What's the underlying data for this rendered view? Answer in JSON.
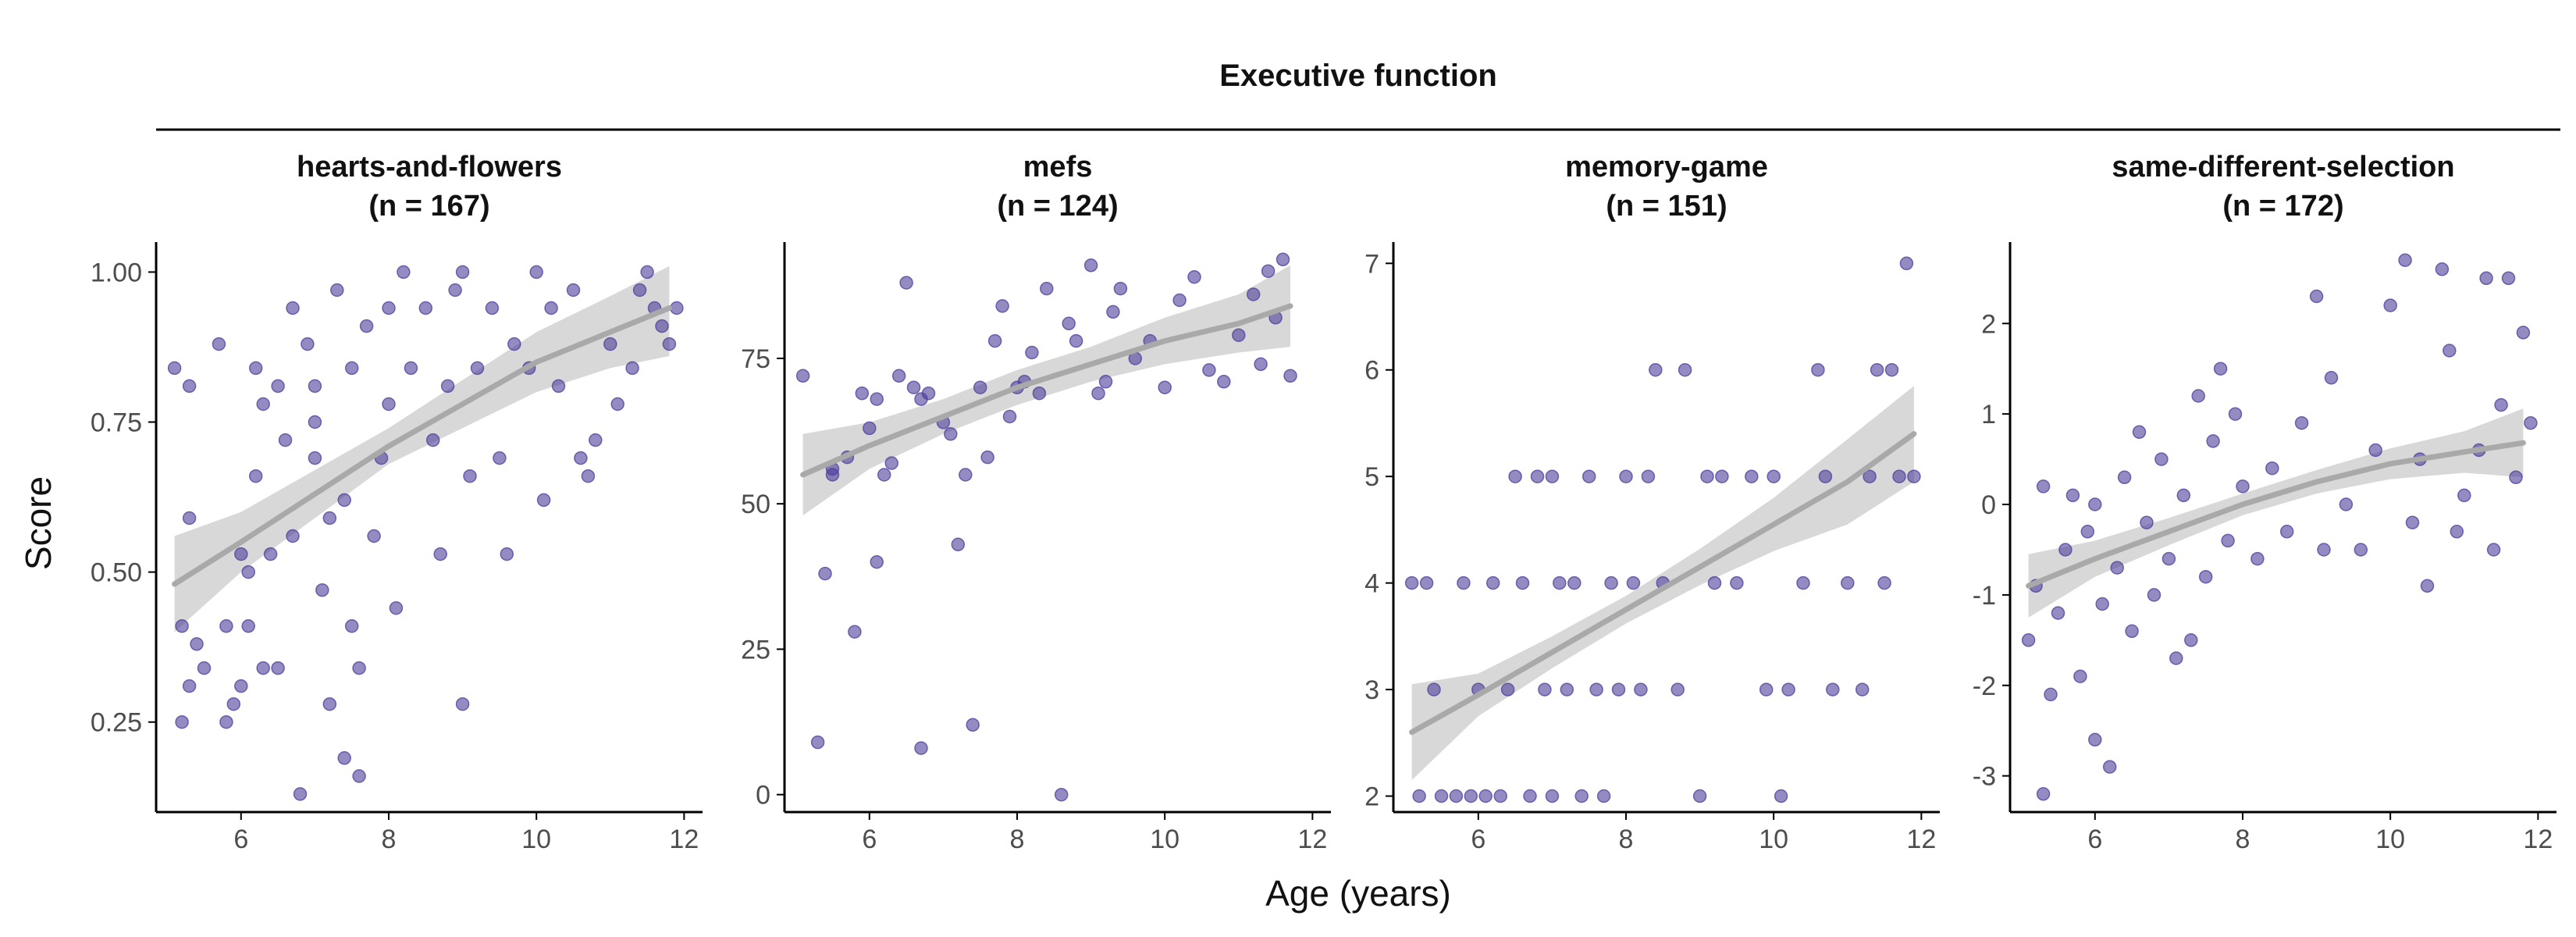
{
  "title": "Executive function",
  "xlabel": "Age (years)",
  "ylabel": "Score",
  "colors": {
    "point": "#4b3d9a",
    "smooth_line": "#a9a9a9",
    "ribbon": "#d4d4d4",
    "axis": "#000000",
    "text": "#4d4d4d"
  },
  "chart_data": [
    {
      "type": "scatter",
      "name": "hearts-and-flowers",
      "subtitle": "(n = 167)",
      "xlim": [
        4.85,
        12.25
      ],
      "ylim": [
        0.1,
        1.05
      ],
      "xticks": [
        6,
        8,
        10,
        12
      ],
      "yticks": [
        0.25,
        0.5,
        0.75,
        1.0
      ],
      "ytick_labels": [
        "0.25",
        "0.50",
        "0.75",
        "1.00"
      ],
      "smooth": {
        "x": [
          5.1,
          6.0,
          7.0,
          8.0,
          9.0,
          10.0,
          11.0,
          11.8
        ],
        "y": [
          0.48,
          0.55,
          0.63,
          0.71,
          0.78,
          0.85,
          0.9,
          0.94
        ],
        "lower": [
          0.4,
          0.5,
          0.59,
          0.68,
          0.74,
          0.8,
          0.84,
          0.86
        ],
        "upper": [
          0.56,
          0.6,
          0.67,
          0.74,
          0.82,
          0.9,
          0.96,
          1.01
        ]
      },
      "points": [
        [
          5.1,
          0.84
        ],
        [
          5.2,
          0.25
        ],
        [
          5.2,
          0.41
        ],
        [
          5.3,
          0.81
        ],
        [
          5.3,
          0.31
        ],
        [
          5.3,
          0.59
        ],
        [
          5.4,
          0.38
        ],
        [
          5.5,
          0.34
        ],
        [
          5.7,
          0.88
        ],
        [
          5.8,
          0.41
        ],
        [
          5.8,
          0.25
        ],
        [
          5.9,
          0.28
        ],
        [
          6.0,
          0.53
        ],
        [
          6.0,
          0.31
        ],
        [
          6.1,
          0.41
        ],
        [
          6.1,
          0.5
        ],
        [
          6.2,
          0.84
        ],
        [
          6.2,
          0.66
        ],
        [
          6.3,
          0.78
        ],
        [
          6.3,
          0.34
        ],
        [
          6.4,
          0.53
        ],
        [
          6.5,
          0.81
        ],
        [
          6.5,
          0.34
        ],
        [
          6.6,
          0.72
        ],
        [
          6.7,
          0.56
        ],
        [
          6.7,
          0.94
        ],
        [
          6.8,
          0.13
        ],
        [
          6.9,
          0.88
        ],
        [
          7.0,
          0.75
        ],
        [
          7.0,
          0.69
        ],
        [
          7.0,
          0.81
        ],
        [
          7.1,
          0.47
        ],
        [
          7.2,
          0.28
        ],
        [
          7.2,
          0.59
        ],
        [
          7.3,
          0.97
        ],
        [
          7.4,
          0.62
        ],
        [
          7.4,
          0.19
        ],
        [
          7.5,
          0.84
        ],
        [
          7.5,
          0.41
        ],
        [
          7.6,
          0.34
        ],
        [
          7.6,
          0.16
        ],
        [
          7.7,
          0.91
        ],
        [
          7.8,
          0.56
        ],
        [
          7.9,
          0.69
        ],
        [
          8.0,
          0.78
        ],
        [
          8.0,
          0.94
        ],
        [
          8.1,
          0.44
        ],
        [
          8.2,
          1.0
        ],
        [
          8.3,
          0.84
        ],
        [
          8.5,
          0.94
        ],
        [
          8.6,
          0.72
        ],
        [
          8.7,
          0.53
        ],
        [
          8.8,
          0.81
        ],
        [
          8.9,
          0.97
        ],
        [
          9.0,
          0.28
        ],
        [
          9.0,
          1.0
        ],
        [
          9.1,
          0.66
        ],
        [
          9.2,
          0.84
        ],
        [
          9.4,
          0.94
        ],
        [
          9.5,
          0.69
        ],
        [
          9.6,
          0.53
        ],
        [
          9.7,
          0.88
        ],
        [
          9.9,
          0.84
        ],
        [
          10.0,
          1.0
        ],
        [
          10.1,
          0.62
        ],
        [
          10.2,
          0.94
        ],
        [
          10.3,
          0.81
        ],
        [
          10.5,
          0.97
        ],
        [
          10.6,
          0.69
        ],
        [
          10.7,
          0.66
        ],
        [
          10.8,
          0.72
        ],
        [
          11.0,
          0.88
        ],
        [
          11.1,
          0.78
        ],
        [
          11.3,
          0.84
        ],
        [
          11.4,
          0.97
        ],
        [
          11.5,
          1.0
        ],
        [
          11.6,
          0.94
        ],
        [
          11.7,
          0.91
        ],
        [
          11.8,
          0.88
        ],
        [
          11.9,
          0.94
        ]
      ]
    },
    {
      "type": "scatter",
      "name": "mefs",
      "subtitle": "(n = 124)",
      "xlim": [
        4.85,
        12.25
      ],
      "ylim": [
        -3,
        95
      ],
      "xticks": [
        6,
        8,
        10,
        12
      ],
      "yticks": [
        0,
        25,
        50,
        75
      ],
      "ytick_labels": [
        "0",
        "25",
        "50",
        "75"
      ],
      "smooth": {
        "x": [
          5.1,
          6.0,
          7.0,
          8.0,
          9.0,
          10.0,
          11.0,
          11.7
        ],
        "y": [
          55,
          60,
          65,
          70,
          74,
          78,
          81,
          84
        ],
        "lower": [
          48,
          56,
          62,
          67,
          71,
          74,
          76,
          77
        ],
        "upper": [
          62,
          64,
          68,
          73,
          77,
          82,
          86,
          91
        ]
      },
      "points": [
        [
          5.1,
          72
        ],
        [
          5.3,
          9
        ],
        [
          5.4,
          38
        ],
        [
          5.5,
          56
        ],
        [
          5.5,
          55
        ],
        [
          5.7,
          58
        ],
        [
          5.8,
          28
        ],
        [
          5.9,
          69
        ],
        [
          6.0,
          63
        ],
        [
          6.1,
          40
        ],
        [
          6.1,
          68
        ],
        [
          6.2,
          55
        ],
        [
          6.3,
          57
        ],
        [
          6.4,
          72
        ],
        [
          6.5,
          88
        ],
        [
          6.6,
          70
        ],
        [
          6.7,
          68
        ],
        [
          6.7,
          8
        ],
        [
          6.8,
          69
        ],
        [
          7.0,
          64
        ],
        [
          7.1,
          62
        ],
        [
          7.2,
          43
        ],
        [
          7.3,
          55
        ],
        [
          7.4,
          12
        ],
        [
          7.5,
          70
        ],
        [
          7.6,
          58
        ],
        [
          7.7,
          78
        ],
        [
          7.8,
          84
        ],
        [
          7.9,
          65
        ],
        [
          8.0,
          70
        ],
        [
          8.1,
          71
        ],
        [
          8.2,
          76
        ],
        [
          8.3,
          69
        ],
        [
          8.4,
          87
        ],
        [
          8.6,
          0
        ],
        [
          8.7,
          81
        ],
        [
          8.8,
          78
        ],
        [
          9.0,
          91
        ],
        [
          9.1,
          69
        ],
        [
          9.2,
          71
        ],
        [
          9.3,
          83
        ],
        [
          9.4,
          87
        ],
        [
          9.6,
          75
        ],
        [
          9.8,
          78
        ],
        [
          10.0,
          70
        ],
        [
          10.2,
          85
        ],
        [
          10.4,
          89
        ],
        [
          10.6,
          73
        ],
        [
          10.8,
          71
        ],
        [
          11.0,
          79
        ],
        [
          11.2,
          86
        ],
        [
          11.3,
          74
        ],
        [
          11.4,
          90
        ],
        [
          11.5,
          82
        ],
        [
          11.6,
          92
        ],
        [
          11.7,
          72
        ]
      ]
    },
    {
      "type": "scatter",
      "name": "memory-game",
      "subtitle": "(n = 151)",
      "xlim": [
        4.85,
        12.25
      ],
      "ylim": [
        1.85,
        7.2
      ],
      "xticks": [
        6,
        8,
        10,
        12
      ],
      "yticks": [
        2,
        3,
        4,
        5,
        6,
        7
      ],
      "ytick_labels": [
        "2",
        "3",
        "4",
        "5",
        "6",
        "7"
      ],
      "smooth": {
        "x": [
          5.1,
          6.0,
          7.0,
          8.0,
          9.0,
          10.0,
          11.0,
          11.9
        ],
        "y": [
          2.6,
          2.95,
          3.35,
          3.75,
          4.15,
          4.55,
          4.95,
          5.4
        ],
        "lower": [
          2.15,
          2.75,
          3.2,
          3.62,
          3.98,
          4.3,
          4.55,
          4.95
        ],
        "upper": [
          3.05,
          3.15,
          3.5,
          3.88,
          4.32,
          4.8,
          5.35,
          5.85
        ]
      },
      "points": [
        [
          5.1,
          4
        ],
        [
          5.3,
          4
        ],
        [
          5.2,
          2
        ],
        [
          5.4,
          3
        ],
        [
          5.5,
          2
        ],
        [
          5.7,
          2
        ],
        [
          5.8,
          4
        ],
        [
          5.9,
          2
        ],
        [
          6.0,
          3
        ],
        [
          6.1,
          2
        ],
        [
          6.2,
          4
        ],
        [
          6.3,
          2
        ],
        [
          6.4,
          3
        ],
        [
          6.5,
          5
        ],
        [
          6.6,
          4
        ],
        [
          6.7,
          2
        ],
        [
          6.8,
          5
        ],
        [
          6.9,
          3
        ],
        [
          7.0,
          5
        ],
        [
          7.0,
          2
        ],
        [
          7.1,
          4
        ],
        [
          7.2,
          3
        ],
        [
          7.3,
          4
        ],
        [
          7.4,
          2
        ],
        [
          7.5,
          5
        ],
        [
          7.6,
          3
        ],
        [
          7.7,
          2
        ],
        [
          7.8,
          4
        ],
        [
          7.9,
          3
        ],
        [
          8.0,
          5
        ],
        [
          8.1,
          4
        ],
        [
          8.2,
          3
        ],
        [
          8.3,
          5
        ],
        [
          8.4,
          6
        ],
        [
          8.5,
          4
        ],
        [
          8.7,
          3
        ],
        [
          8.8,
          6
        ],
        [
          9.0,
          2
        ],
        [
          9.1,
          5
        ],
        [
          9.2,
          4
        ],
        [
          9.3,
          5
        ],
        [
          9.5,
          4
        ],
        [
          9.7,
          5
        ],
        [
          9.9,
          3
        ],
        [
          10.0,
          5
        ],
        [
          10.1,
          2
        ],
        [
          10.2,
          3
        ],
        [
          10.4,
          4
        ],
        [
          10.6,
          6
        ],
        [
          10.7,
          5
        ],
        [
          10.8,
          3
        ],
        [
          11.0,
          4
        ],
        [
          11.2,
          3
        ],
        [
          11.3,
          5
        ],
        [
          11.4,
          6
        ],
        [
          11.5,
          4
        ],
        [
          11.6,
          6
        ],
        [
          11.7,
          5
        ],
        [
          11.8,
          7
        ],
        [
          11.9,
          5
        ]
      ]
    },
    {
      "type": "scatter",
      "name": "same-different-selection",
      "subtitle": "(n = 172)",
      "xlim": [
        4.85,
        12.25
      ],
      "ylim": [
        -3.4,
        2.9
      ],
      "xticks": [
        6,
        8,
        10,
        12
      ],
      "yticks": [
        -3,
        -2,
        -1,
        0,
        1,
        2
      ],
      "ytick_labels": [
        "-3",
        "-2",
        "-1",
        "0",
        "1",
        "2"
      ],
      "smooth": {
        "x": [
          5.1,
          6.0,
          7.0,
          8.0,
          9.0,
          10.0,
          11.0,
          11.8
        ],
        "y": [
          -0.9,
          -0.6,
          -0.3,
          0.0,
          0.25,
          0.45,
          0.58,
          0.68
        ],
        "lower": [
          -1.25,
          -0.8,
          -0.45,
          -0.12,
          0.12,
          0.28,
          0.35,
          0.3
        ],
        "upper": [
          -0.55,
          -0.4,
          -0.15,
          0.12,
          0.38,
          0.62,
          0.81,
          1.06
        ]
      },
      "points": [
        [
          5.1,
          -1.5
        ],
        [
          5.2,
          -0.9
        ],
        [
          5.3,
          0.2
        ],
        [
          5.3,
          -3.2
        ],
        [
          5.4,
          -2.1
        ],
        [
          5.5,
          -1.2
        ],
        [
          5.6,
          -0.5
        ],
        [
          5.7,
          0.1
        ],
        [
          5.8,
          -1.9
        ],
        [
          5.9,
          -0.3
        ],
        [
          6.0,
          -2.6
        ],
        [
          6.0,
          0.0
        ],
        [
          6.1,
          -1.1
        ],
        [
          6.2,
          -2.9
        ],
        [
          6.3,
          -0.7
        ],
        [
          6.4,
          0.3
        ],
        [
          6.5,
          -1.4
        ],
        [
          6.6,
          0.8
        ],
        [
          6.7,
          -0.2
        ],
        [
          6.8,
          -1.0
        ],
        [
          6.9,
          0.5
        ],
        [
          7.0,
          -0.6
        ],
        [
          7.1,
          -1.7
        ],
        [
          7.2,
          0.1
        ],
        [
          7.3,
          -1.5
        ],
        [
          7.4,
          1.2
        ],
        [
          7.5,
          -0.8
        ],
        [
          7.6,
          0.7
        ],
        [
          7.7,
          1.5
        ],
        [
          7.8,
          -0.4
        ],
        [
          7.9,
          1.0
        ],
        [
          8.0,
          0.2
        ],
        [
          8.2,
          -0.6
        ],
        [
          8.4,
          0.4
        ],
        [
          8.6,
          -0.3
        ],
        [
          8.8,
          0.9
        ],
        [
          9.0,
          2.3
        ],
        [
          9.1,
          -0.5
        ],
        [
          9.2,
          1.4
        ],
        [
          9.4,
          0.0
        ],
        [
          9.6,
          -0.5
        ],
        [
          9.8,
          0.6
        ],
        [
          10.0,
          2.2
        ],
        [
          10.2,
          2.7
        ],
        [
          10.3,
          -0.2
        ],
        [
          10.4,
          0.5
        ],
        [
          10.5,
          -0.9
        ],
        [
          10.7,
          2.6
        ],
        [
          10.8,
          1.7
        ],
        [
          10.9,
          -0.3
        ],
        [
          11.0,
          0.1
        ],
        [
          11.2,
          0.6
        ],
        [
          11.3,
          2.5
        ],
        [
          11.4,
          -0.5
        ],
        [
          11.5,
          1.1
        ],
        [
          11.6,
          2.5
        ],
        [
          11.7,
          0.3
        ],
        [
          11.8,
          1.9
        ],
        [
          11.9,
          0.9
        ]
      ]
    }
  ]
}
